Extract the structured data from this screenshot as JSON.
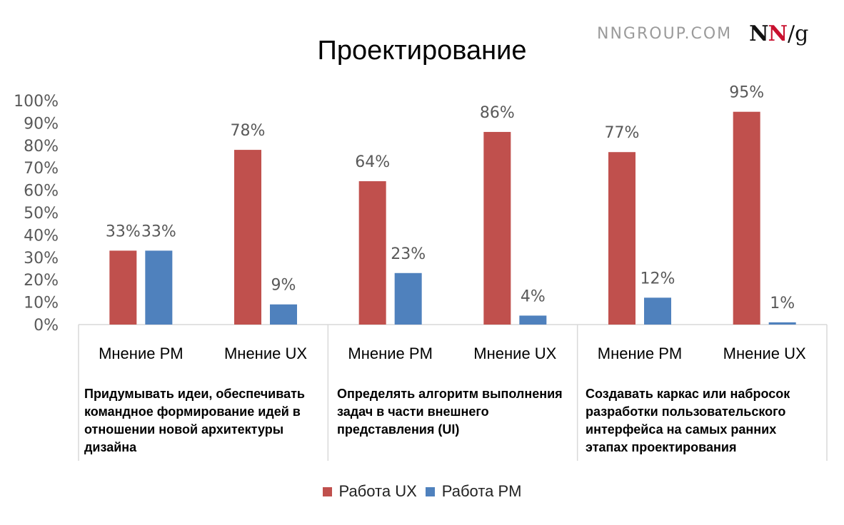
{
  "brand": {
    "site": "NNGROUP.COM",
    "logo": {
      "n1": "N",
      "n2": "N",
      "slash": "/",
      "g": "g"
    }
  },
  "colors": {
    "ux": "#c0504d",
    "pm": "#4f81bd",
    "axis_text": "#595959",
    "grid": "#d9d9d9"
  },
  "chart_data": {
    "type": "bar",
    "title": "Проектирование",
    "yticks": [
      "0%",
      "10%",
      "20%",
      "30%",
      "40%",
      "50%",
      "60%",
      "70%",
      "80%",
      "90%",
      "100%"
    ],
    "ylim": [
      0,
      100
    ],
    "legend_position": "bottom",
    "series": [
      {
        "name": "Работа UX",
        "color": "#c0504d",
        "values": [
          33,
          78,
          64,
          86,
          77,
          95
        ]
      },
      {
        "name": "Работа PM",
        "color": "#4f81bd",
        "values": [
          33,
          9,
          23,
          4,
          12,
          1
        ]
      }
    ],
    "categories": [
      "Мнение PM",
      "Мнение UX",
      "Мнение PM",
      "Мнение UX",
      "Мнение PM",
      "Мнение UX"
    ],
    "data_labels": {
      "ux": [
        "33%",
        "78%",
        "64%",
        "86%",
        "77%",
        "95%"
      ],
      "pm": [
        "33%",
        "9%",
        "23%",
        "4%",
        "12%",
        "1%"
      ]
    },
    "groups": [
      "Придумывать идеи, обеспечивать командное формирование идей в отношении новой архитектуры дизайна",
      "Определять алгоритм выполнения задач в части внешнего представления (UI)",
      "Создавать каркас или набросок разработки пользовательского интерфейса на самых ранних этапах проектирования"
    ]
  }
}
